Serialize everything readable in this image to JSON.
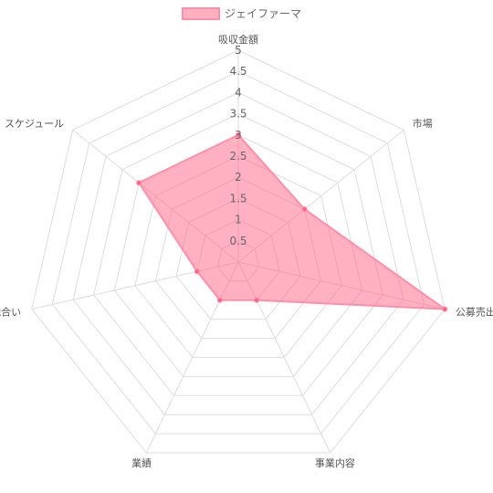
{
  "chart_data": {
    "type": "radar",
    "title": "",
    "categories": [
      "吸収金額",
      "市場",
      "公募売出比",
      "事業内容",
      "業績",
      "地合い",
      "スケジュール"
    ],
    "series": [
      {
        "name": "ジェイファーマ",
        "values": [
          3,
          2,
          5,
          1,
          1,
          1,
          3
        ],
        "fill_color": "#ff6384",
        "fill_opacity": 0.5,
        "line_color": "#ff8fa8"
      }
    ],
    "rmin": 0,
    "rmax": 5,
    "ticks": [
      "0.5",
      "1",
      "1.5",
      "2",
      "2.5",
      "3",
      "3.5",
      "4",
      "4.5",
      "5"
    ],
    "grid": true,
    "legend_position": "top"
  }
}
